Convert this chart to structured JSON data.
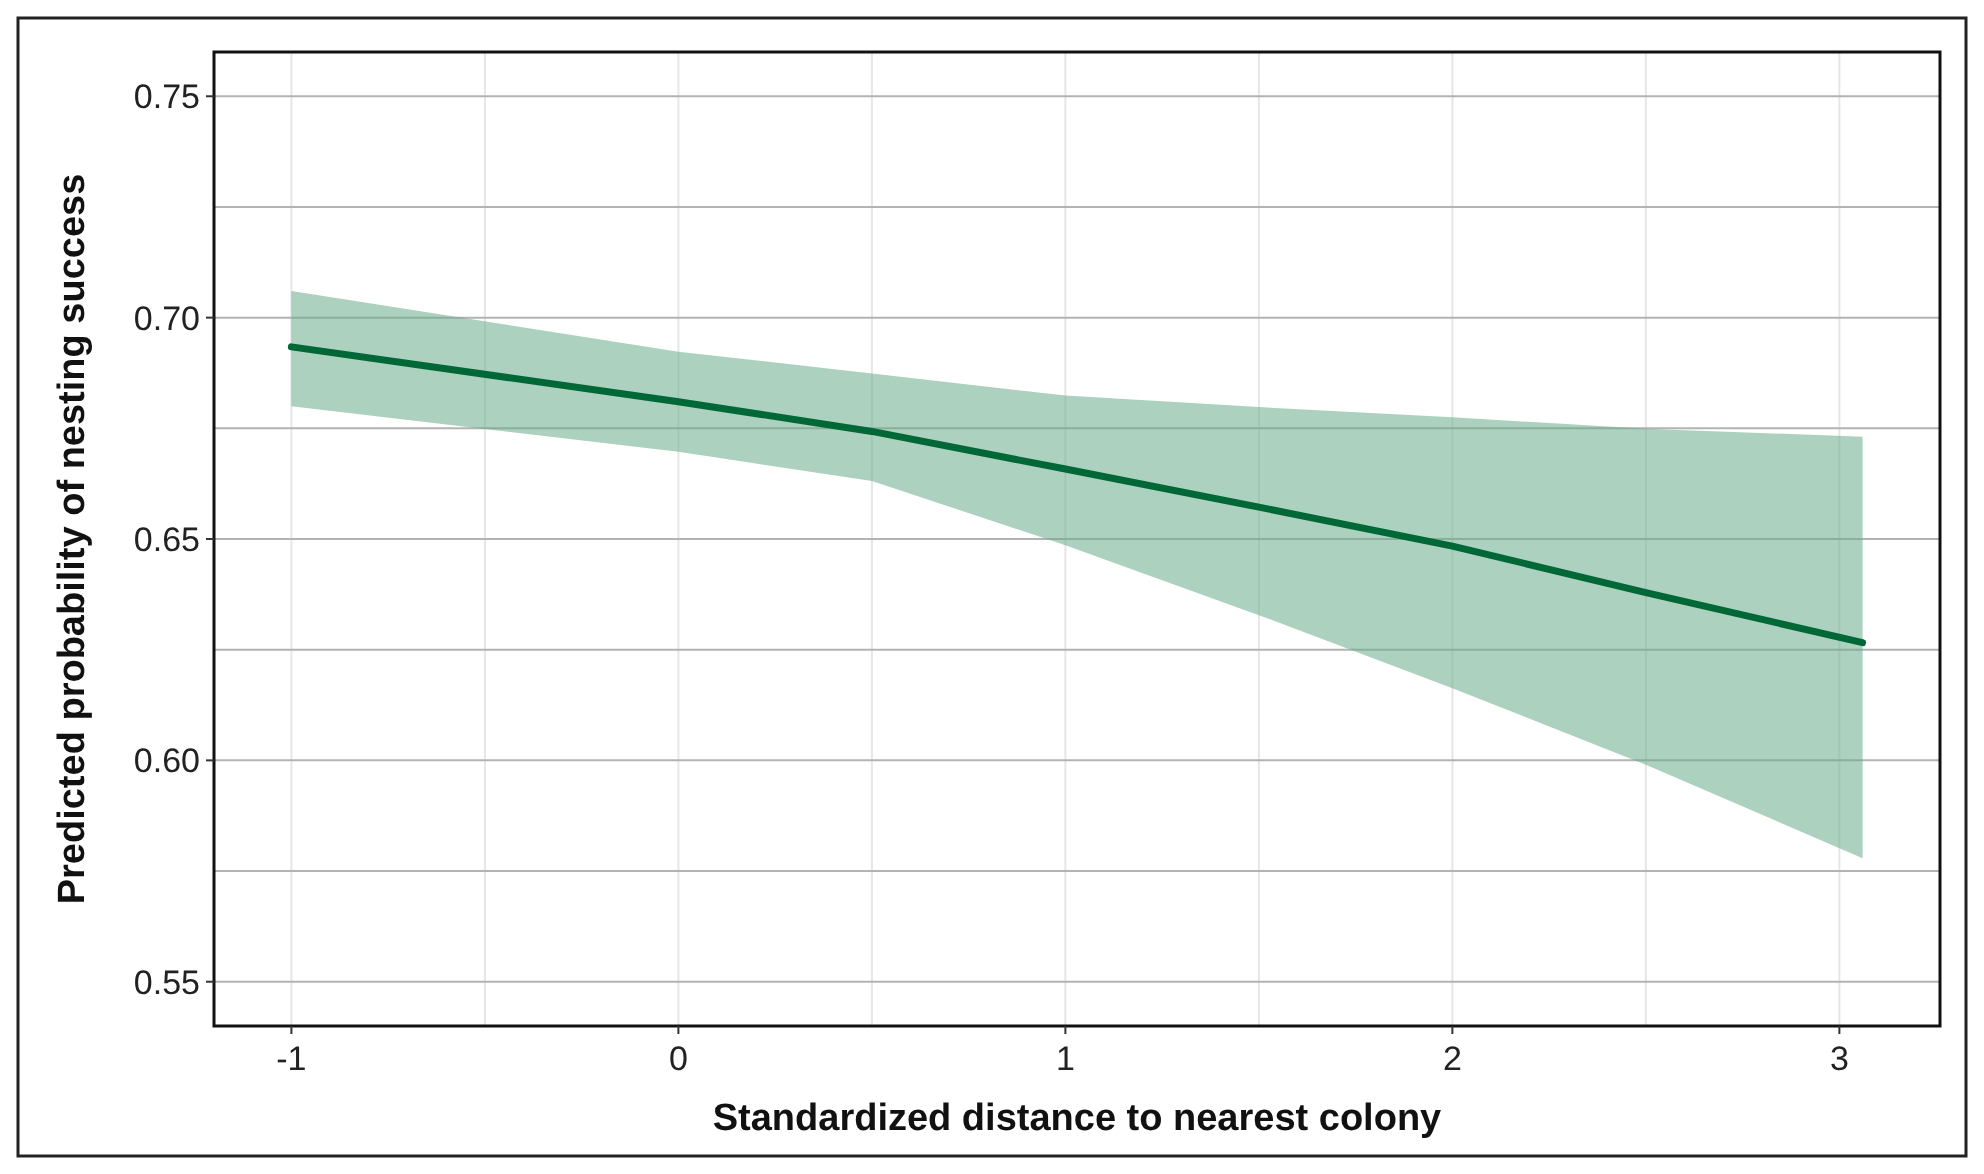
{
  "chart_data": {
    "type": "line",
    "xlabel": "Standardized distance to nearest colony",
    "ylabel": "Predicted probability of nesting success",
    "xlim": [
      -1.2,
      3.26
    ],
    "ylim": [
      0.54,
      0.76
    ],
    "xticks": [
      -1,
      {
        "value": -0.5,
        "label": null
      },
      0,
      {
        "value": 0.5,
        "label": null
      },
      1,
      {
        "value": 1.5,
        "label": null
      },
      2,
      {
        "value": 2.5,
        "label": null
      },
      3
    ],
    "yticks": [
      0.55,
      {
        "value": 0.575,
        "label": null
      },
      "0.60",
      {
        "value": 0.625,
        "label": null
      },
      0.65,
      {
        "value": 0.675,
        "label": null
      },
      "0.70",
      {
        "value": 0.725,
        "label": null
      },
      0.75
    ],
    "grid": true,
    "series": [
      {
        "color": "#006837",
        "x": [
          -1,
          0,
          0.5,
          1,
          1.5,
          2,
          2.5,
          3.06
        ],
        "values": [
          0.6934,
          0.681,
          0.6743,
          0.6658,
          0.6572,
          0.6484,
          0.6379,
          0.6266
        ],
        "lower": [
          0.68,
          0.6697,
          0.6631,
          0.6486,
          0.6328,
          0.6163,
          0.599,
          0.5779
        ],
        "upper": [
          0.706,
          0.6923,
          0.6874,
          0.6824,
          0.6798,
          0.6775,
          0.6749,
          0.6731
        ]
      }
    ]
  }
}
